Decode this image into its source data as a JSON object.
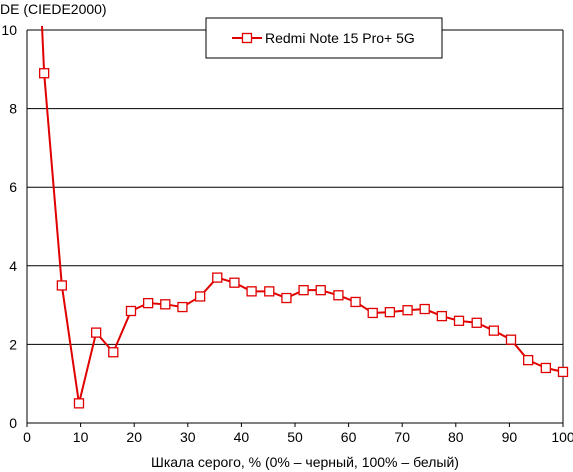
{
  "chart_data": {
    "type": "line",
    "title": "",
    "ylabel": "DE (CIEDE2000)",
    "xlabel": "Шкала серого, % (0% – черный, 100% – белый)",
    "xlim": [
      0,
      100
    ],
    "ylim": [
      0,
      10
    ],
    "xticks": [
      "0",
      "10",
      "20",
      "30",
      "40",
      "50",
      "60",
      "70",
      "80",
      "90",
      "100"
    ],
    "yticks": [
      "0",
      "2",
      "4",
      "6",
      "8",
      "10"
    ],
    "grid": "horizontal",
    "legend_position": "top-center",
    "series": [
      {
        "name": "Redmi Note 15 Pro+ 5G",
        "color": "#e00000",
        "marker": "open-square",
        "x": [
          3.2,
          6.5,
          9.7,
          12.9,
          16.1,
          19.4,
          22.6,
          25.8,
          29.0,
          32.3,
          35.5,
          38.7,
          41.9,
          45.2,
          48.4,
          51.6,
          54.8,
          58.1,
          61.3,
          64.5,
          67.7,
          71.0,
          74.2,
          77.4,
          80.6,
          83.9,
          87.1,
          90.3,
          93.5,
          96.8,
          100.0
        ],
        "y": [
          8.9,
          3.5,
          0.5,
          2.3,
          1.8,
          2.85,
          3.05,
          3.02,
          2.95,
          3.22,
          3.7,
          3.57,
          3.35,
          3.35,
          3.18,
          3.38,
          3.38,
          3.25,
          3.08,
          2.8,
          2.82,
          2.87,
          2.9,
          2.72,
          2.6,
          2.55,
          2.35,
          2.12,
          1.6,
          1.4,
          1.3
        ]
      }
    ],
    "series_lead_in": {
      "x": 2.8,
      "y": 10.4
    }
  }
}
